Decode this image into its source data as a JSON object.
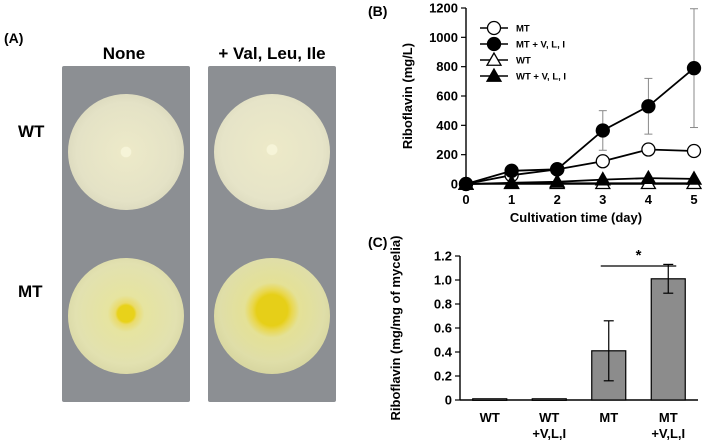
{
  "panel_a": {
    "label": "(A)",
    "columns": [
      "None",
      "+ Val, Leu, Ile"
    ],
    "rows": [
      "WT",
      "MT"
    ]
  },
  "chart_data": [
    {
      "panel": "(B)",
      "type": "line",
      "title": "",
      "xlabel": "Cultivation time (day)",
      "ylabel": "Riboflavin (mg/L)",
      "x": [
        0,
        1,
        2,
        3,
        4,
        5
      ],
      "xlim": [
        0,
        5
      ],
      "ylim": [
        0,
        1200
      ],
      "yticks": [
        0,
        200,
        400,
        600,
        800,
        1000,
        1200
      ],
      "legend_position": "top-left",
      "series": [
        {
          "name": "MT",
          "marker": "open-circle",
          "values": [
            0,
            60,
            100,
            155,
            235,
            225
          ],
          "error": [
            0,
            10,
            10,
            15,
            30,
            15
          ]
        },
        {
          "name": "MT + V, L, I",
          "marker": "filled-circle",
          "values": [
            0,
            90,
            100,
            365,
            530,
            790
          ],
          "error": [
            0,
            10,
            10,
            135,
            190,
            405
          ]
        },
        {
          "name": "WT",
          "marker": "open-triangle",
          "values": [
            0,
            5,
            5,
            5,
            5,
            5
          ],
          "error": [
            0,
            0,
            0,
            0,
            0,
            0
          ]
        },
        {
          "name": "WT + V, L, I",
          "marker": "filled-triangle",
          "values": [
            0,
            8,
            15,
            30,
            40,
            35
          ],
          "error": [
            0,
            0,
            0,
            5,
            5,
            5
          ]
        }
      ],
      "colors": {
        "line": "#000000"
      }
    },
    {
      "panel": "(C)",
      "type": "bar",
      "title": "",
      "ylabel": "Riboflavin (mg/mg of mycelia)",
      "categories": [
        [
          "WT",
          ""
        ],
        [
          "WT",
          "+V,L,I"
        ],
        [
          "MT",
          ""
        ],
        [
          "MT",
          "+V,L,I"
        ]
      ],
      "values": [
        0.01,
        0.01,
        0.41,
        1.01
      ],
      "error": [
        0,
        0,
        0.25,
        0.12
      ],
      "ylim": [
        0,
        1.2
      ],
      "yticks": [
        "0",
        "0.2",
        "0.4",
        "0.6",
        "0.8",
        "1.0",
        "1.2"
      ],
      "significance": {
        "between": [
          2,
          3
        ],
        "label": "*"
      },
      "colors": {
        "bar": "#8c8c8c",
        "edge": "#000000"
      }
    }
  ]
}
